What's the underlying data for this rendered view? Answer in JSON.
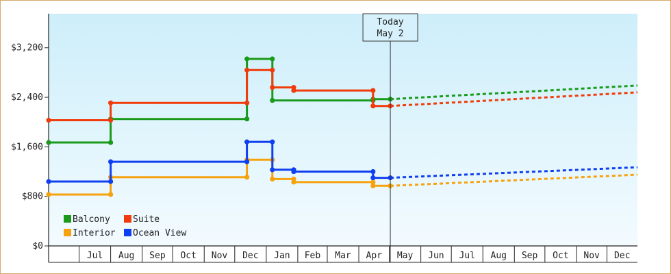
{
  "chart_data": {
    "type": "line",
    "step": true,
    "y_ticks": [
      "$0",
      "$800",
      "$1,600",
      "$2,400",
      "$3,200"
    ],
    "ylim": [
      0,
      3200
    ],
    "x_tick_labels": [
      "Jul",
      "Aug",
      "Sep",
      "Oct",
      "Nov",
      "Dec",
      "Jan",
      "Feb",
      "Mar",
      "Apr",
      "May",
      "Jun",
      "Jul",
      "Aug",
      "Sep",
      "Oct",
      "Nov",
      "Dec"
    ],
    "today_label": [
      "Today",
      "May 2"
    ],
    "legend": [
      {
        "name": "Balcony",
        "color": "#1a9a1a"
      },
      {
        "name": "Suite",
        "color": "#f03c0a"
      },
      {
        "name": "Interior",
        "color": "#f6a20c"
      },
      {
        "name": "Ocean View",
        "color": "#0f3ff0"
      }
    ],
    "series": [
      {
        "name": "Balcony",
        "color": "#1a9a1a",
        "history": [
          [
            "2023-06-01",
            1670
          ],
          [
            "2023-08-01",
            1670
          ],
          [
            "2023-08-01",
            2050
          ],
          [
            "2023-12-13",
            2050
          ],
          [
            "2023-12-13",
            3020
          ],
          [
            "2024-01-07",
            3020
          ],
          [
            "2024-01-07",
            2350
          ],
          [
            "2024-04-15",
            2350
          ],
          [
            "2024-04-15",
            2370
          ],
          [
            "2024-05-02",
            2370
          ]
        ],
        "forecast": [
          [
            "2024-05-02",
            2370
          ],
          [
            "2024-12-31",
            2590
          ]
        ]
      },
      {
        "name": "Suite",
        "color": "#f03c0a",
        "history": [
          [
            "2023-06-01",
            2030
          ],
          [
            "2023-08-01",
            2030
          ],
          [
            "2023-08-01",
            2310
          ],
          [
            "2023-12-13",
            2310
          ],
          [
            "2023-12-13",
            2840
          ],
          [
            "2024-01-07",
            2840
          ],
          [
            "2024-01-07",
            2560
          ],
          [
            "2024-01-28",
            2560
          ],
          [
            "2024-01-28",
            2510
          ],
          [
            "2024-04-15",
            2510
          ],
          [
            "2024-04-15",
            2260
          ],
          [
            "2024-05-02",
            2260
          ]
        ],
        "forecast": [
          [
            "2024-05-02",
            2260
          ],
          [
            "2024-12-31",
            2480
          ]
        ]
      },
      {
        "name": "Interior",
        "color": "#f6a20c",
        "history": [
          [
            "2023-06-01",
            830
          ],
          [
            "2023-08-01",
            830
          ],
          [
            "2023-08-01",
            1110
          ],
          [
            "2023-12-13",
            1110
          ],
          [
            "2023-12-13",
            1390
          ],
          [
            "2024-01-07",
            1390
          ],
          [
            "2024-01-07",
            1080
          ],
          [
            "2024-01-28",
            1080
          ],
          [
            "2024-01-28",
            1030
          ],
          [
            "2024-04-15",
            1030
          ],
          [
            "2024-04-15",
            970
          ],
          [
            "2024-05-02",
            970
          ]
        ],
        "forecast": [
          [
            "2024-05-02",
            970
          ],
          [
            "2024-12-31",
            1150
          ]
        ]
      },
      {
        "name": "Ocean View",
        "color": "#0f3ff0",
        "history": [
          [
            "2023-06-01",
            1040
          ],
          [
            "2023-08-01",
            1040
          ],
          [
            "2023-08-01",
            1360
          ],
          [
            "2023-12-13",
            1360
          ],
          [
            "2023-12-13",
            1680
          ],
          [
            "2024-01-07",
            1680
          ],
          [
            "2024-01-07",
            1230
          ],
          [
            "2024-01-28",
            1230
          ],
          [
            "2024-01-28",
            1200
          ],
          [
            "2024-04-15",
            1200
          ],
          [
            "2024-04-15",
            1100
          ],
          [
            "2024-05-02",
            1100
          ]
        ],
        "forecast": [
          [
            "2024-05-02",
            1100
          ],
          [
            "2024-12-31",
            1270
          ]
        ]
      }
    ]
  }
}
